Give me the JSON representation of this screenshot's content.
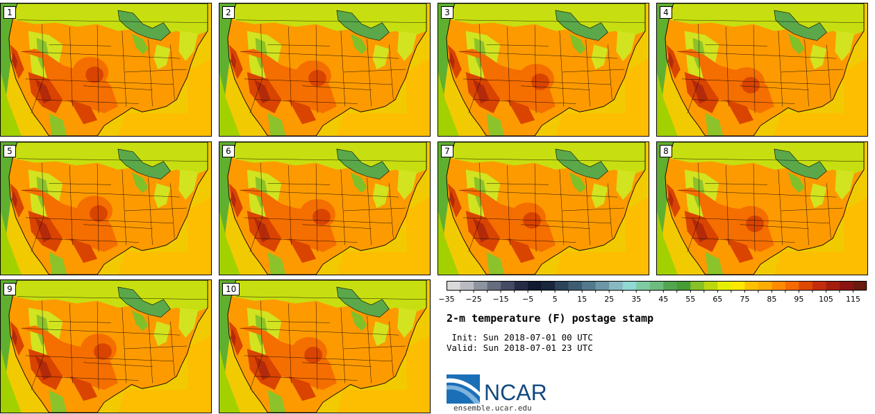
{
  "title": "2-m temperature (F) postage stamp",
  "init_label": " Init: Sun 2018-07-01 00 UTC",
  "valid_label": "Valid: Sun 2018-07-01 23 UTC",
  "site": "ensemble.ucar.edu",
  "logo_text": "NCAR",
  "members": [
    {
      "label": "1"
    },
    {
      "label": "2"
    },
    {
      "label": "3"
    },
    {
      "label": "4"
    },
    {
      "label": "5"
    },
    {
      "label": "6"
    },
    {
      "label": "7"
    },
    {
      "label": "8"
    },
    {
      "label": "9"
    },
    {
      "label": "10"
    }
  ],
  "colorbar": {
    "min": -35,
    "max": 120,
    "step": 5,
    "tick_labels": [
      "-35",
      "-25",
      "-15",
      "-5",
      "5",
      "15",
      "25",
      "35",
      "45",
      "55",
      "65",
      "75",
      "85",
      "95",
      "105",
      "115"
    ],
    "colors": [
      "#d9d9dc",
      "#b9bbc1",
      "#8e93a0",
      "#676d80",
      "#454b62",
      "#262c45",
      "#111a30",
      "#19263c",
      "#2c435a",
      "#3e5d72",
      "#537a8c",
      "#6c97a6",
      "#89b8c1",
      "#90d8d2",
      "#7fcaa3",
      "#6cbd7d",
      "#52a650",
      "#479c35",
      "#88c126",
      "#bcd70e",
      "#e6ef03",
      "#fde800",
      "#fdc100",
      "#fdac00",
      "#fe8b00",
      "#f66a00",
      "#de4700",
      "#c22e0c",
      "#a41e10",
      "#8a1510",
      "#6a1a10"
    ]
  },
  "map_colors": {
    "ocean": "#f2ca02",
    "ocean_pacific": "#a3d100",
    "pacific_far": "#60b030",
    "north": "#c7df10",
    "great_lakes": "#5aa84a",
    "lakes_edge": "#80c028",
    "gulf": "#fdbd00",
    "land_base": "#fd9a00",
    "hot1": "#f56e00",
    "hot2": "#d94400",
    "hot3": "#b32a0a",
    "mountain": "#d2e320",
    "mountain_green": "#8cc32a",
    "border": "#000000"
  }
}
